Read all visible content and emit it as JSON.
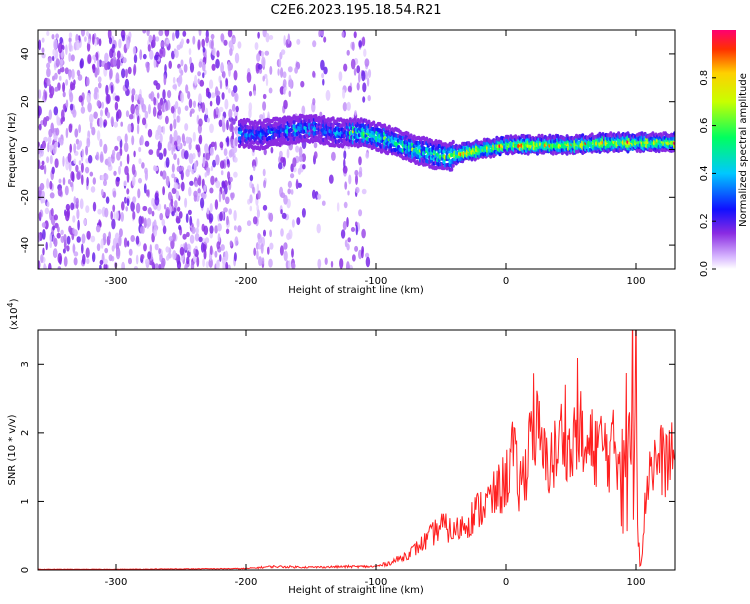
{
  "title": "C2E6.2023.195.18.54.R21",
  "chart_data": [
    {
      "type": "heatmap",
      "xlabel": "Height of straight line (km)",
      "ylabel": "Frequency (Hz)",
      "xlim": [
        -360,
        130
      ],
      "ylim": [
        -50,
        50
      ],
      "xticks": [
        "-300",
        "-200",
        "-100",
        "0",
        "100"
      ],
      "yticks": [
        "-40",
        "-20",
        "0",
        "20",
        "40"
      ],
      "colorbar": {
        "label": "Normalized spectral amplitude",
        "range": [
          0,
          1
        ],
        "ticks": [
          "0.0",
          "0.2",
          "0.4",
          "0.6",
          "0.8"
        ]
      },
      "ridge": {
        "description": "dominant frequency track vs height",
        "x": [
          -205,
          -190,
          -170,
          -150,
          -130,
          -110,
          -90,
          -70,
          -55,
          -45,
          -30,
          -10,
          0,
          20,
          50,
          80,
          100,
          130
        ],
        "y": [
          7,
          6,
          8,
          9,
          7,
          7,
          4,
          0,
          -2,
          -3,
          -1,
          1,
          2,
          2,
          2,
          3,
          3,
          3
        ]
      },
      "grid": false
    },
    {
      "type": "line",
      "xlabel": "Height of straight line (km)",
      "ylabel": "SNR (10 * v/v)",
      "multiplier": "(x10",
      "multiplier_exp": "4",
      "multiplier_close": ")",
      "xlim": [
        -360,
        130
      ],
      "ylim": [
        0,
        3.5
      ],
      "xticks": [
        "-300",
        "-200",
        "-100",
        "0",
        "100"
      ],
      "yticks": [
        "0",
        "1",
        "2",
        "3"
      ],
      "series": [
        {
          "color": "#ff2020",
          "x": [
            -360,
            -300,
            -200,
            -180,
            -150,
            -120,
            -100,
            -90,
            -80,
            -70,
            -60,
            -50,
            -40,
            -30,
            -20,
            -10,
            0,
            5,
            10,
            15,
            20,
            30,
            40,
            45,
            50,
            55,
            60,
            70,
            80,
            85,
            90,
            95,
            98,
            100,
            103,
            110,
            120,
            130
          ],
          "y": [
            0.01,
            0.01,
            0.02,
            0.05,
            0.04,
            0.05,
            0.05,
            0.1,
            0.18,
            0.3,
            0.45,
            0.65,
            0.55,
            0.7,
            0.9,
            1.05,
            1.3,
            1.75,
            1.2,
            1.45,
            2.3,
            1.55,
            1.7,
            2.2,
            1.55,
            2.3,
            1.65,
            1.85,
            1.7,
            1.8,
            1.95,
            1.5,
            2.6,
            3.45,
            0.05,
            1.55,
            1.6,
            1.6
          ]
        }
      ],
      "grid": false
    }
  ]
}
